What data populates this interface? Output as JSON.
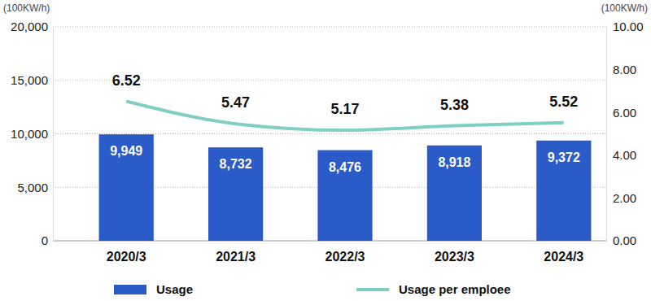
{
  "chart_data": {
    "type": "bar",
    "categories": [
      "2020/3",
      "2021/3",
      "2022/3",
      "2023/3",
      "2024/3"
    ],
    "series": [
      {
        "name": "Usage",
        "type": "bar",
        "color": "#2a5bc8",
        "values": [
          9949,
          8732,
          8476,
          8918,
          9372
        ],
        "value_labels": [
          "9,949",
          "8,732",
          "8,476",
          "8,918",
          "9,372"
        ]
      },
      {
        "name": "Usage per emploee",
        "type": "line",
        "axis": "y2",
        "color": "#7fd0c2",
        "marker": "none",
        "line_style": "solid",
        "values": [
          6.52,
          5.47,
          5.17,
          5.38,
          5.52
        ]
      }
    ],
    "y_label": "(100KW/h)",
    "y2_label": "(100KW/h)",
    "ylim": [
      0,
      20000
    ],
    "yticks": [
      0,
      {
        "value": 5000,
        "label": "5,000"
      },
      {
        "value": 10000,
        "label": "10,000"
      },
      {
        "value": 15000,
        "label": "15,000"
      },
      {
        "value": 20000,
        "label": "20,000"
      }
    ],
    "y2lim": [
      0,
      10
    ],
    "y2ticks": [
      {
        "value": 0,
        "label": "0.00"
      },
      {
        "value": 2,
        "label": "2.00"
      },
      {
        "value": 4,
        "label": "4.00"
      },
      {
        "value": 6,
        "label": "6.00"
      },
      {
        "value": 8,
        "label": "8.00"
      },
      {
        "value": 10,
        "label": "10.00"
      }
    ],
    "grid": true,
    "legend": "bottom",
    "data_labels": true
  }
}
